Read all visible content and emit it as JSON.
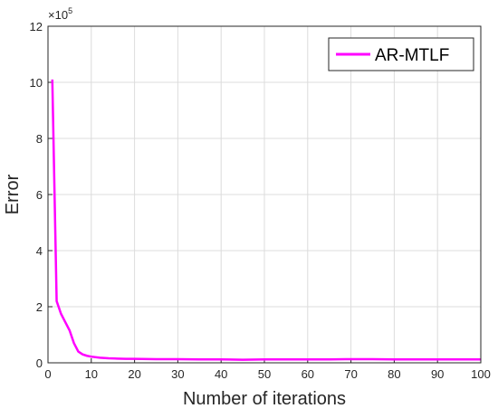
{
  "chart_data": {
    "type": "line",
    "xlabel": "Number of iterations",
    "ylabel": "Error",
    "y_exponent_label": "×10",
    "y_exponent_power": "5",
    "xlim": [
      0,
      100
    ],
    "ylim": [
      0,
      12
    ],
    "x_ticks": [
      0,
      10,
      20,
      30,
      40,
      50,
      60,
      70,
      80,
      90,
      100
    ],
    "y_ticks": [
      0,
      2,
      4,
      6,
      8,
      10,
      12
    ],
    "x_tick_labels": [
      "0",
      "10",
      "20",
      "30",
      "40",
      "50",
      "60",
      "70",
      "80",
      "90",
      "100"
    ],
    "y_tick_labels": [
      "0",
      "2",
      "4",
      "6",
      "8",
      "10",
      "12"
    ],
    "grid": true,
    "legend_position": "top-right",
    "series": [
      {
        "name": "AR-MTLF",
        "color": "#ff00ff",
        "x": [
          1,
          2,
          3,
          4,
          5,
          6,
          7,
          8,
          9,
          10,
          12,
          14,
          16,
          18,
          20,
          25,
          30,
          35,
          40,
          45,
          50,
          55,
          60,
          65,
          70,
          75,
          80,
          85,
          90,
          95,
          100
        ],
        "y": [
          10.1,
          2.2,
          1.75,
          1.45,
          1.15,
          0.7,
          0.4,
          0.3,
          0.25,
          0.22,
          0.18,
          0.16,
          0.15,
          0.14,
          0.14,
          0.13,
          0.13,
          0.12,
          0.12,
          0.11,
          0.12,
          0.12,
          0.12,
          0.12,
          0.13,
          0.13,
          0.12,
          0.12,
          0.12,
          0.12,
          0.12
        ]
      }
    ]
  }
}
